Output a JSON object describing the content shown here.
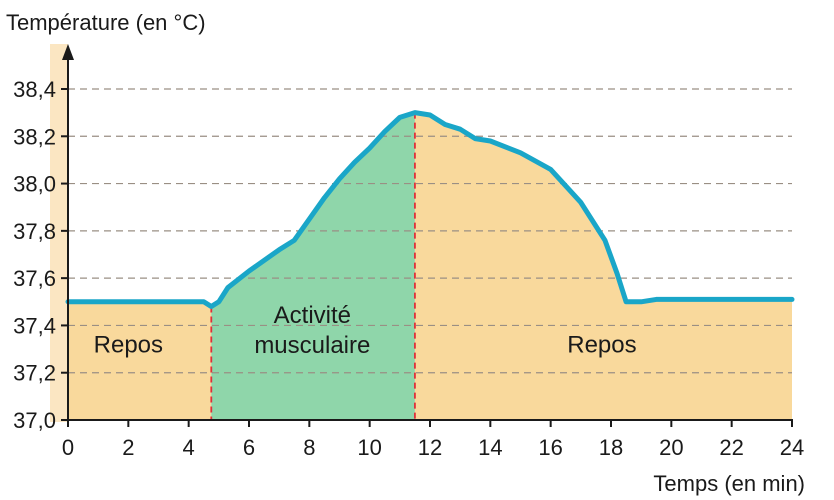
{
  "chart_data": {
    "type": "area",
    "ylabel": "Température (en °C)",
    "xlabel": "Temps (en min)",
    "xlim": [
      0,
      24
    ],
    "ylim": [
      37.0,
      38.4
    ],
    "x_ticks": [
      "0",
      "2",
      "4",
      "6",
      "8",
      "10",
      "12",
      "14",
      "16",
      "18",
      "20",
      "22",
      "24"
    ],
    "y_ticks": [
      "37,0",
      "37,2",
      "37,4",
      "37,6",
      "37,8",
      "38,0",
      "38,2",
      "38,4"
    ],
    "grid": "horizontal dashed",
    "series": [
      {
        "color": "#1aa6c8",
        "points": [
          [
            0,
            37.5
          ],
          [
            2,
            37.5
          ],
          [
            4,
            37.5
          ],
          [
            4.5,
            37.5
          ],
          [
            4.75,
            37.48
          ],
          [
            5.0,
            37.5
          ],
          [
            5.3,
            37.56
          ],
          [
            6.0,
            37.63
          ],
          [
            7.0,
            37.72
          ],
          [
            7.5,
            37.76
          ],
          [
            8.0,
            37.85
          ],
          [
            8.5,
            37.94
          ],
          [
            9.0,
            38.02
          ],
          [
            9.5,
            38.09
          ],
          [
            10.0,
            38.15
          ],
          [
            10.5,
            38.22
          ],
          [
            11.0,
            38.28
          ],
          [
            11.5,
            38.3
          ],
          [
            12.0,
            38.29
          ],
          [
            12.5,
            38.25
          ],
          [
            13.0,
            38.23
          ],
          [
            13.5,
            38.19
          ],
          [
            14.0,
            38.18
          ],
          [
            15.0,
            38.13
          ],
          [
            16.0,
            38.06
          ],
          [
            17.0,
            37.92
          ],
          [
            17.8,
            37.76
          ],
          [
            18.2,
            37.62
          ],
          [
            18.5,
            37.5
          ],
          [
            19.0,
            37.5
          ],
          [
            19.5,
            37.51
          ],
          [
            20.0,
            37.51
          ],
          [
            22.0,
            37.51
          ],
          [
            24.0,
            37.51
          ]
        ]
      }
    ],
    "regions": [
      {
        "label": "Repos",
        "x_start": 0,
        "x_end": 4.75,
        "color": "#f9d99c",
        "label_x": 2.0,
        "label_y": 37.32
      },
      {
        "label": "Activité\nmusculaire",
        "x_start": 4.75,
        "x_end": 11.5,
        "color": "#8fd6aa",
        "label_x": 8.1,
        "label_y": 37.38
      },
      {
        "label": "Repos",
        "x_start": 11.5,
        "x_end": 24,
        "color": "#f9d99c",
        "label_x": 17.7,
        "label_y": 37.32
      }
    ],
    "markers": [
      {
        "x": 4.75,
        "color": "#e0303a"
      },
      {
        "x": 11.5,
        "color": "#e0303a"
      }
    ]
  }
}
